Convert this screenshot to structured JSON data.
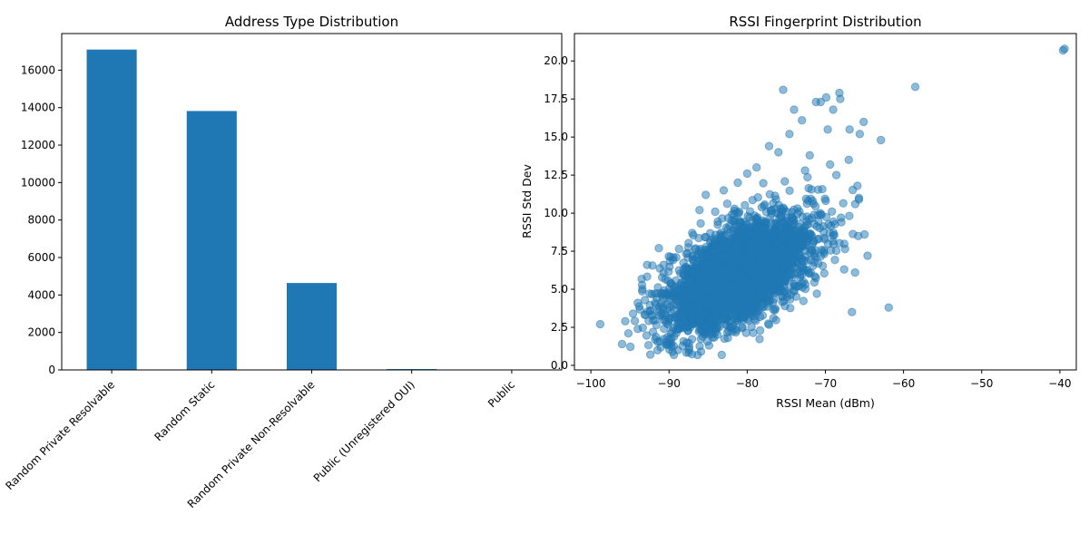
{
  "chart_data": [
    {
      "type": "bar",
      "title": "Address Type Distribution",
      "xlabel": "",
      "ylabel": "",
      "categories": [
        "Random Private Resolvable",
        "Random Static",
        "Random Private Non-Resolvable",
        "Public (Unregistered OUI)",
        "Public"
      ],
      "values": [
        17100,
        13820,
        4640,
        45,
        5
      ],
      "ylim": [
        0,
        17955
      ],
      "yticks": [
        0,
        2000,
        4000,
        6000,
        8000,
        10000,
        12000,
        14000,
        16000
      ],
      "ytick_labels": [
        "0",
        "2000",
        "4000",
        "6000",
        "8000",
        "10000",
        "12000",
        "14000",
        "16000"
      ],
      "color": "#1f77b4",
      "grid": false
    },
    {
      "type": "scatter",
      "title": "RSSI Fingerprint Distribution",
      "xlabel": "RSSI Mean (dBm)",
      "ylabel": "RSSI Std Dev",
      "xlim": [
        -102.1,
        -37.9
      ],
      "ylim": [
        -0.3,
        21.8
      ],
      "xticks": [
        -100,
        -90,
        -80,
        -70,
        -60,
        -50,
        -40
      ],
      "xtick_labels": [
        "−100",
        "−90",
        "−80",
        "−70",
        "−60",
        "−50",
        "−40"
      ],
      "yticks": [
        0,
        2.5,
        5,
        7.5,
        10,
        12.5,
        15,
        17.5,
        20
      ],
      "ytick_labels": [
        "0.0",
        "2.5",
        "5.0",
        "7.5",
        "10.0",
        "12.5",
        "15.0",
        "17.5",
        "20.0"
      ],
      "color": "#1f77b4",
      "alpha": 0.5,
      "grid": false,
      "cluster": {
        "n_points": 3200,
        "mean_x": -81,
        "mean_y": 6.0,
        "sd_x": 4.6,
        "sd_y": 1.9,
        "correlation": 0.55,
        "min_x": -95,
        "max_x": -66,
        "min_y": 0.6,
        "max_y": 12.8
      },
      "outliers": [
        {
          "x": -98.8,
          "y": 2.7
        },
        {
          "x": -96.0,
          "y": 1.4
        },
        {
          "x": -95.6,
          "y": 2.9
        },
        {
          "x": -95.2,
          "y": 2.1
        },
        {
          "x": -94.6,
          "y": 3.4
        },
        {
          "x": -94.0,
          "y": 4.1
        },
        {
          "x": -93.4,
          "y": 5.0
        },
        {
          "x": -92.8,
          "y": 6.6
        },
        {
          "x": -91.3,
          "y": 7.7
        },
        {
          "x": -90.7,
          "y": 6.6
        },
        {
          "x": -86.1,
          "y": 10.2
        },
        {
          "x": -85.3,
          "y": 11.2
        },
        {
          "x": -83.0,
          "y": 11.5
        },
        {
          "x": -81.2,
          "y": 12.0
        },
        {
          "x": -80.0,
          "y": 12.6
        },
        {
          "x": -78.8,
          "y": 13.0
        },
        {
          "x": -77.2,
          "y": 14.4
        },
        {
          "x": -76.0,
          "y": 14.0
        },
        {
          "x": -75.4,
          "y": 18.1
        },
        {
          "x": -74.6,
          "y": 15.2
        },
        {
          "x": -74.0,
          "y": 16.8
        },
        {
          "x": -73.0,
          "y": 16.1
        },
        {
          "x": -72.6,
          "y": 12.8
        },
        {
          "x": -72.0,
          "y": 13.8
        },
        {
          "x": -71.2,
          "y": 17.3
        },
        {
          "x": -70.6,
          "y": 17.3
        },
        {
          "x": -69.9,
          "y": 17.6
        },
        {
          "x": -69.7,
          "y": 15.5
        },
        {
          "x": -69.4,
          "y": 13.2
        },
        {
          "x": -69.0,
          "y": 16.8
        },
        {
          "x": -68.6,
          "y": 12.5
        },
        {
          "x": -68.2,
          "y": 17.9
        },
        {
          "x": -68.1,
          "y": 17.5
        },
        {
          "x": -68.0,
          "y": 9.7
        },
        {
          "x": -67.6,
          "y": 6.3
        },
        {
          "x": -67.0,
          "y": 13.5
        },
        {
          "x": -66.9,
          "y": 15.5
        },
        {
          "x": -66.6,
          "y": 3.5
        },
        {
          "x": -66.2,
          "y": 6.1
        },
        {
          "x": -65.9,
          "y": 11.8
        },
        {
          "x": -65.8,
          "y": 8.5
        },
        {
          "x": -65.7,
          "y": 11.0
        },
        {
          "x": -65.7,
          "y": 10.9
        },
        {
          "x": -65.6,
          "y": 15.2
        },
        {
          "x": -65.1,
          "y": 16.0
        },
        {
          "x": -65.0,
          "y": 8.6
        },
        {
          "x": -64.6,
          "y": 7.2
        },
        {
          "x": -62.9,
          "y": 14.8
        },
        {
          "x": -61.9,
          "y": 3.8
        },
        {
          "x": -58.5,
          "y": 18.3
        },
        {
          "x": -39.6,
          "y": 20.7
        },
        {
          "x": -39.4,
          "y": 20.8
        }
      ]
    }
  ]
}
